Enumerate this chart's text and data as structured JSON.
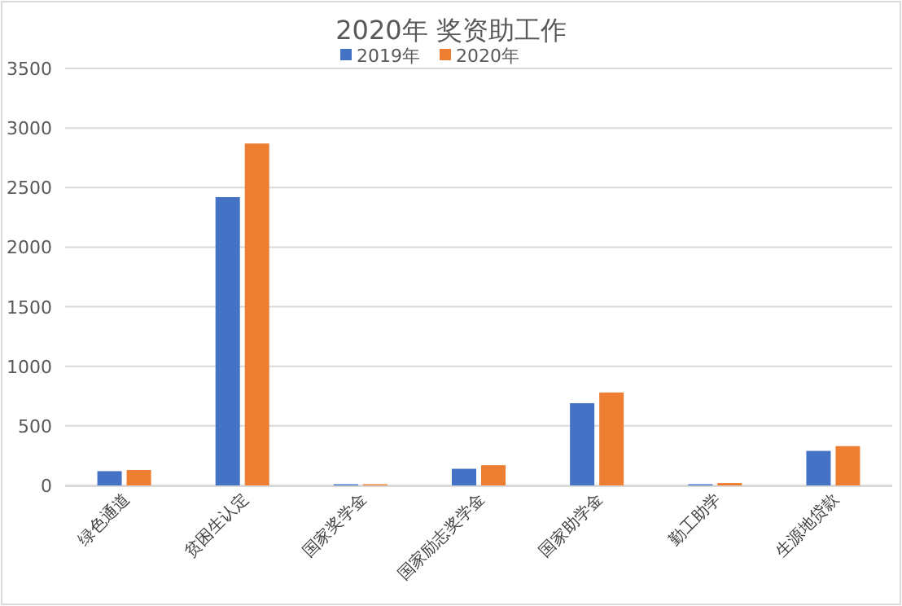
{
  "chart_data": {
    "type": "bar",
    "title": "2020年 奖资助工作",
    "categories": [
      "绿色通道",
      "贫困生认定",
      "国家奖学金",
      "国家励志奖学金",
      "国家助学金",
      "勤工助学",
      "生源地贷款"
    ],
    "series": [
      {
        "name": "2019年",
        "color": "#4472c4",
        "values": [
          120,
          2420,
          10,
          140,
          690,
          10,
          290
        ]
      },
      {
        "name": "2020年",
        "color": "#ed7d31",
        "values": [
          130,
          2870,
          10,
          170,
          780,
          20,
          330
        ]
      }
    ],
    "ylim": [
      0,
      3500
    ],
    "yticks": [
      0,
      500,
      1000,
      1500,
      2000,
      2500,
      3000,
      3500
    ],
    "grid": "y",
    "legend": "top"
  }
}
